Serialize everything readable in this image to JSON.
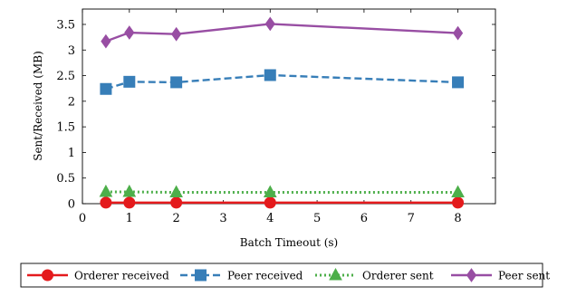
{
  "chart_data": {
    "type": "line",
    "title": "",
    "xlabel": "Batch Timeout (s)",
    "ylabel": "Sent/Received (MB)",
    "xlim": [
      0,
      8.8
    ],
    "ylim": [
      0,
      3.8
    ],
    "x_ticks": [
      0,
      1,
      2,
      3,
      4,
      5,
      6,
      7,
      8
    ],
    "y_ticks": [
      0,
      0.5,
      1,
      1.5,
      2,
      2.5,
      3,
      3.5
    ],
    "x_tick_labels": [
      "0",
      "1",
      "2",
      "3",
      "4",
      "5",
      "6",
      "7",
      "8"
    ],
    "y_tick_labels": [
      "0",
      "0.5",
      "1",
      "1.5",
      "2",
      "2.5",
      "3",
      "3.5"
    ],
    "grid": false,
    "legend_position": "bottom",
    "x": [
      0.5,
      1,
      2,
      4,
      8
    ],
    "series": [
      {
        "name": "Orderer received",
        "values": [
          0.02,
          0.02,
          0.02,
          0.02,
          0.02
        ],
        "color": "#e41a1c",
        "marker": "circle",
        "dash": "solid"
      },
      {
        "name": "Peer received",
        "values": [
          2.24,
          2.38,
          2.37,
          2.51,
          2.37
        ],
        "color": "#377eb8",
        "marker": "square",
        "dash": "dashed"
      },
      {
        "name": "Orderer sent",
        "values": [
          0.23,
          0.23,
          0.22,
          0.22,
          0.22
        ],
        "color": "#4daf4a",
        "marker": "triangle",
        "dash": "dotted"
      },
      {
        "name": "Peer sent",
        "values": [
          3.17,
          3.34,
          3.31,
          3.51,
          3.33
        ],
        "color": "#984ea3",
        "marker": "diamond",
        "dash": "solid"
      }
    ]
  }
}
